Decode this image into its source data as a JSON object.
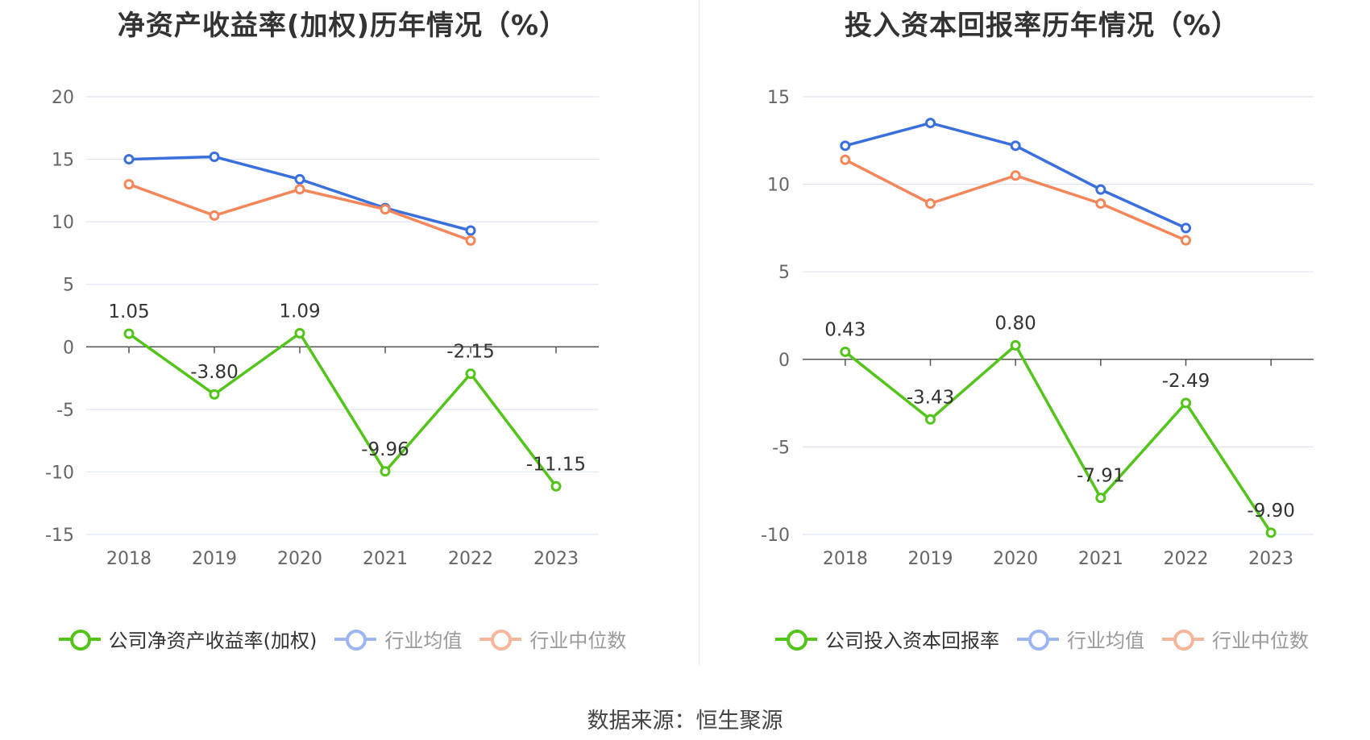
{
  "source": "数据来源：恒生聚源",
  "colors": {
    "company": "#52c41a",
    "industry_avg": "#3a6fde",
    "industry_median": "#f5865a",
    "legend_avg": "#9db5f0",
    "legend_median": "#f7b69b"
  },
  "chart_data": [
    {
      "type": "line",
      "title": "净资产收益率(加权)历年情况（%）",
      "categories": [
        "2018",
        "2019",
        "2020",
        "2021",
        "2022",
        "2023"
      ],
      "ylim": [
        -15,
        20
      ],
      "yticks": [
        20,
        15,
        10,
        5,
        0,
        -5,
        -10,
        -15
      ],
      "grid": true,
      "legend_position": "bottom",
      "series": [
        {
          "name": "公司净资产收益率(加权)",
          "key": "company",
          "values": [
            1.05,
            -3.8,
            1.09,
            -9.96,
            -2.15,
            -11.15
          ],
          "labels": [
            "1.05",
            "-3.80",
            "1.09",
            "-9.96",
            "-2.15",
            "-11.15"
          ]
        },
        {
          "name": "行业均值",
          "key": "industry_avg",
          "values": [
            15.0,
            15.2,
            13.4,
            11.1,
            9.3,
            null
          ]
        },
        {
          "name": "行业中位数",
          "key": "industry_median",
          "values": [
            13.0,
            10.5,
            12.6,
            11.0,
            8.5,
            null
          ]
        }
      ]
    },
    {
      "type": "line",
      "title": "投入资本回报率历年情况（%）",
      "categories": [
        "2018",
        "2019",
        "2020",
        "2021",
        "2022",
        "2023"
      ],
      "ylim": [
        -10,
        15
      ],
      "yticks": [
        15,
        10,
        5,
        0,
        -5,
        -10
      ],
      "grid": true,
      "legend_position": "bottom",
      "series": [
        {
          "name": "公司投入资本回报率",
          "key": "company",
          "values": [
            0.43,
            -3.43,
            0.8,
            -7.91,
            -2.49,
            -9.9
          ],
          "labels": [
            "0.43",
            "-3.43",
            "0.80",
            "-7.91",
            "-2.49",
            "-9.90"
          ]
        },
        {
          "name": "行业均值",
          "key": "industry_avg",
          "values": [
            12.2,
            13.5,
            12.2,
            9.7,
            7.5,
            null
          ]
        },
        {
          "name": "行业中位数",
          "key": "industry_median",
          "values": [
            11.4,
            8.9,
            10.5,
            8.9,
            6.8,
            null
          ]
        }
      ]
    }
  ]
}
